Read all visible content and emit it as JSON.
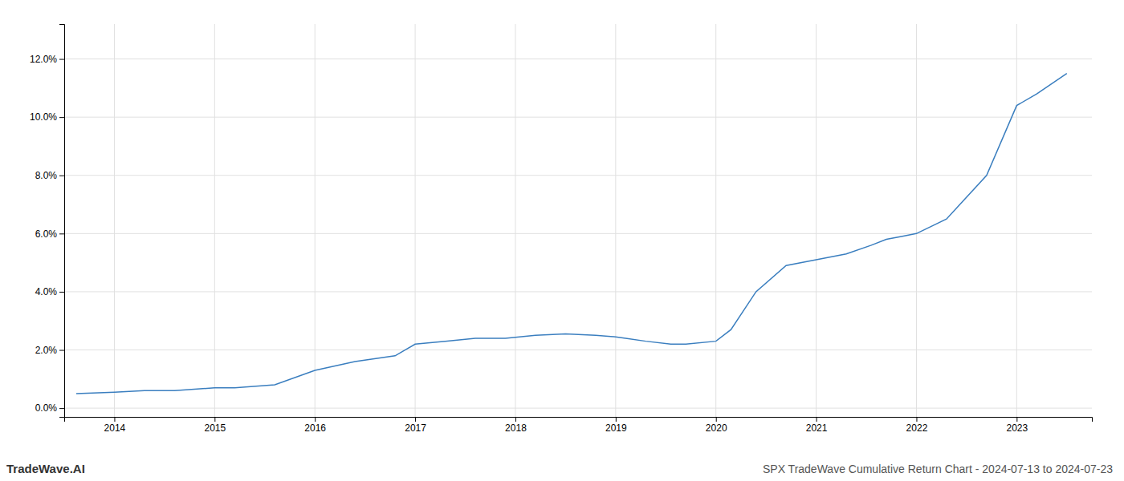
{
  "chart_data": {
    "type": "line",
    "title": "SPX TradeWave Cumulative Return Chart - 2024-07-13 to 2024-07-23",
    "annotations": [
      "TradeWave.AI"
    ],
    "color": "#3a7ebf",
    "x": [
      2013.62,
      2014.0,
      2014.3,
      2014.6,
      2015.0,
      2015.2,
      2015.6,
      2016.0,
      2016.4,
      2016.8,
      2017.0,
      2017.3,
      2017.6,
      2017.9,
      2018.2,
      2018.5,
      2018.8,
      2019.0,
      2019.1,
      2019.3,
      2019.55,
      2019.7,
      2020.0,
      2020.15,
      2020.4,
      2020.7,
      2021.0,
      2021.3,
      2021.55,
      2021.7,
      2021.85,
      2022.0,
      2022.3,
      2022.7,
      2023.0,
      2023.2,
      2023.5
    ],
    "values": [
      0.005,
      0.0055,
      0.006,
      0.006,
      0.007,
      0.007,
      0.008,
      0.013,
      0.016,
      0.018,
      0.022,
      0.023,
      0.024,
      0.024,
      0.025,
      0.0255,
      0.025,
      0.0245,
      0.024,
      0.023,
      0.022,
      0.022,
      0.023,
      0.027,
      0.04,
      0.049,
      0.051,
      0.053,
      0.056,
      0.058,
      0.059,
      0.06,
      0.065,
      0.08,
      0.104,
      0.108,
      0.115
    ],
    "xlim": [
      2013.5,
      2023.75
    ],
    "ylim": [
      -0.003,
      0.132
    ],
    "xticks": [
      2014,
      2015,
      2016,
      2017,
      2018,
      2019,
      2020,
      2021,
      2022,
      2023
    ],
    "yticks": [
      {
        "value": 0.0,
        "label": "0.0%"
      },
      {
        "value": 0.02,
        "label": "2.0%"
      },
      {
        "value": 0.04,
        "label": "4.0%"
      },
      {
        "value": 0.06,
        "label": "6.0%"
      },
      {
        "value": 0.08,
        "label": "8.0%"
      },
      {
        "value": 0.1,
        "label": "10.0%"
      },
      {
        "value": 0.12,
        "label": "12.0%"
      }
    ],
    "grid": true
  }
}
